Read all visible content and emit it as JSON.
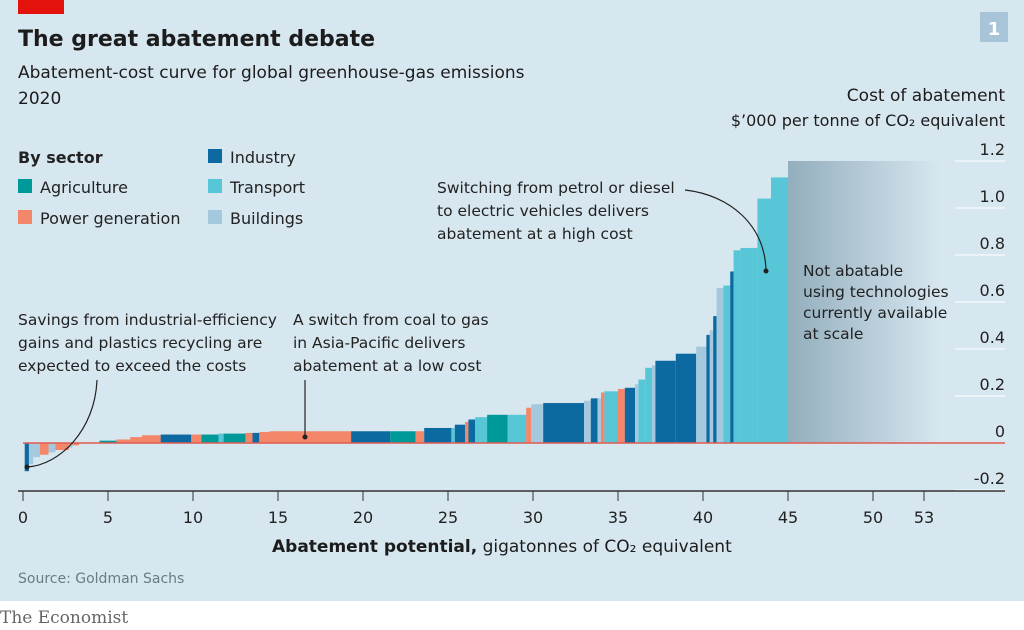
{
  "header": {
    "title": "The great abatement debate",
    "subtitle": "Abatement-cost curve for global greenhouse-gas emissions",
    "year": "2020",
    "chart_number": "1"
  },
  "footer": {
    "source": "Source: Goldman Sachs",
    "brand": "The Economist"
  },
  "colors": {
    "background": "#d7e7f0",
    "brand_red": "#e3120b",
    "Agriculture": "#00999a",
    "Power generation": "#f4866a",
    "Industry": "#0d6aa1",
    "Transport": "#57c6d7",
    "Buildings": "#a4c9de",
    "not_abatable": "#93aebd",
    "zero_line": "#e05a4f"
  },
  "chart_data": {
    "type": "bar",
    "subtype": "variable-width cost curve",
    "xlabel_bold": "Abatement potential,",
    "xlabel_rest": " gigatonnes of CO₂ equivalent",
    "ylabel": "Cost of abatement",
    "yunit": "$’000 per tonne of CO₂ equivalent",
    "xlim": [
      0,
      57
    ],
    "ylim": [
      -0.2,
      1.2
    ],
    "xticks": [
      "0",
      "5",
      "10",
      "15",
      "20",
      "25",
      "30",
      "35",
      "40",
      "45",
      "50",
      "53"
    ],
    "xtick_values": [
      0,
      5,
      10,
      15,
      20,
      25,
      30,
      35,
      40,
      45,
      50,
      53
    ],
    "yticks": [
      "1.2",
      "1.0",
      "0.8",
      "0.6",
      "0.4",
      "0.2",
      "0",
      "-0.2"
    ],
    "ytick_values": [
      1.2,
      1.0,
      0.8,
      0.6,
      0.4,
      0.2,
      0,
      -0.2
    ],
    "legend": {
      "title": "By sector",
      "entries": [
        "Agriculture",
        "Power generation",
        "Industry",
        "Transport",
        "Buildings"
      ]
    },
    "segments": [
      {
        "sector": "Industry",
        "x0": 0.1,
        "x1": 0.35,
        "cost": -0.12
      },
      {
        "sector": "Buildings",
        "x0": 0.35,
        "x1": 0.6,
        "cost": -0.09
      },
      {
        "sector": "Buildings",
        "x0": 0.6,
        "x1": 1.0,
        "cost": -0.06
      },
      {
        "sector": "Power generation",
        "x0": 1.0,
        "x1": 1.5,
        "cost": -0.05
      },
      {
        "sector": "Buildings",
        "x0": 1.5,
        "x1": 1.9,
        "cost": -0.04
      },
      {
        "sector": "Power generation",
        "x0": 1.9,
        "x1": 2.7,
        "cost": -0.03
      },
      {
        "sector": "Buildings",
        "x0": 2.7,
        "x1": 2.9,
        "cost": -0.02
      },
      {
        "sector": "Power generation",
        "x0": 2.9,
        "x1": 3.3,
        "cost": -0.01
      },
      {
        "sector": "Agriculture",
        "x0": 4.5,
        "x1": 5.5,
        "cost": 0.01
      },
      {
        "sector": "Power generation",
        "x0": 5.5,
        "x1": 6.3,
        "cost": 0.015
      },
      {
        "sector": "Power generation",
        "x0": 6.3,
        "x1": 7.0,
        "cost": 0.025
      },
      {
        "sector": "Power generation",
        "x0": 7.0,
        "x1": 8.1,
        "cost": 0.033
      },
      {
        "sector": "Industry",
        "x0": 8.1,
        "x1": 9.9,
        "cost": 0.036
      },
      {
        "sector": "Power generation",
        "x0": 9.9,
        "x1": 10.5,
        "cost": 0.036
      },
      {
        "sector": "Agriculture",
        "x0": 10.5,
        "x1": 11.5,
        "cost": 0.036
      },
      {
        "sector": "Transport",
        "x0": 11.5,
        "x1": 11.8,
        "cost": 0.04
      },
      {
        "sector": "Agriculture",
        "x0": 11.8,
        "x1": 13.1,
        "cost": 0.04
      },
      {
        "sector": "Power generation",
        "x0": 13.1,
        "x1": 13.5,
        "cost": 0.043
      },
      {
        "sector": "Industry",
        "x0": 13.5,
        "x1": 13.9,
        "cost": 0.043
      },
      {
        "sector": "Power generation",
        "x0": 13.9,
        "x1": 14.5,
        "cost": 0.047
      },
      {
        "sector": "Power generation",
        "x0": 14.5,
        "x1": 19.3,
        "cost": 0.05
      },
      {
        "sector": "Industry",
        "x0": 19.3,
        "x1": 21.6,
        "cost": 0.05
      },
      {
        "sector": "Agriculture",
        "x0": 21.6,
        "x1": 23.1,
        "cost": 0.05
      },
      {
        "sector": "Power generation",
        "x0": 23.1,
        "x1": 23.6,
        "cost": 0.05
      },
      {
        "sector": "Industry",
        "x0": 23.6,
        "x1": 25.2,
        "cost": 0.064
      },
      {
        "sector": "Transport",
        "x0": 25.2,
        "x1": 25.4,
        "cost": 0.064
      },
      {
        "sector": "Industry",
        "x0": 25.4,
        "x1": 26.0,
        "cost": 0.078
      },
      {
        "sector": "Power generation",
        "x0": 26.0,
        "x1": 26.2,
        "cost": 0.09
      },
      {
        "sector": "Industry",
        "x0": 26.2,
        "x1": 26.6,
        "cost": 0.1
      },
      {
        "sector": "Transport",
        "x0": 26.6,
        "x1": 27.3,
        "cost": 0.11
      },
      {
        "sector": "Agriculture",
        "x0": 27.3,
        "x1": 28.5,
        "cost": 0.12
      },
      {
        "sector": "Transport",
        "x0": 28.5,
        "x1": 29.6,
        "cost": 0.12
      },
      {
        "sector": "Power generation",
        "x0": 29.6,
        "x1": 29.9,
        "cost": 0.15
      },
      {
        "sector": "Buildings",
        "x0": 29.9,
        "x1": 30.6,
        "cost": 0.165
      },
      {
        "sector": "Industry",
        "x0": 30.6,
        "x1": 33.0,
        "cost": 0.17
      },
      {
        "sector": "Buildings",
        "x0": 33.0,
        "x1": 33.4,
        "cost": 0.18
      },
      {
        "sector": "Industry",
        "x0": 33.4,
        "x1": 33.8,
        "cost": 0.19
      },
      {
        "sector": "Buildings",
        "x0": 33.8,
        "x1": 34.0,
        "cost": 0.19
      },
      {
        "sector": "Power generation",
        "x0": 34.0,
        "x1": 34.2,
        "cost": 0.215
      },
      {
        "sector": "Transport",
        "x0": 34.2,
        "x1": 35.0,
        "cost": 0.22
      },
      {
        "sector": "Power generation",
        "x0": 35.0,
        "x1": 35.4,
        "cost": 0.23
      },
      {
        "sector": "Industry",
        "x0": 35.4,
        "x1": 36.0,
        "cost": 0.235
      },
      {
        "sector": "Buildings",
        "x0": 36.0,
        "x1": 36.2,
        "cost": 0.25
      },
      {
        "sector": "Transport",
        "x0": 36.2,
        "x1": 36.6,
        "cost": 0.27
      },
      {
        "sector": "Transport",
        "x0": 36.6,
        "x1": 37.0,
        "cost": 0.32
      },
      {
        "sector": "Buildings",
        "x0": 37.0,
        "x1": 37.2,
        "cost": 0.33
      },
      {
        "sector": "Industry",
        "x0": 37.2,
        "x1": 38.4,
        "cost": 0.35
      },
      {
        "sector": "Industry",
        "x0": 38.4,
        "x1": 39.6,
        "cost": 0.38
      },
      {
        "sector": "Buildings",
        "x0": 39.6,
        "x1": 40.2,
        "cost": 0.41
      },
      {
        "sector": "Industry",
        "x0": 40.2,
        "x1": 40.4,
        "cost": 0.46
      },
      {
        "sector": "Buildings",
        "x0": 40.4,
        "x1": 40.6,
        "cost": 0.48
      },
      {
        "sector": "Industry",
        "x0": 40.6,
        "x1": 40.8,
        "cost": 0.54
      },
      {
        "sector": "Buildings",
        "x0": 40.8,
        "x1": 41.2,
        "cost": 0.66
      },
      {
        "sector": "Transport",
        "x0": 41.2,
        "x1": 41.6,
        "cost": 0.67
      },
      {
        "sector": "Industry",
        "x0": 41.6,
        "x1": 41.8,
        "cost": 0.73
      },
      {
        "sector": "Transport",
        "x0": 41.8,
        "x1": 42.2,
        "cost": 0.82
      },
      {
        "sector": "Transport",
        "x0": 42.2,
        "x1": 43.2,
        "cost": 0.83
      },
      {
        "sector": "Transport",
        "x0": 43.2,
        "x1": 44.0,
        "cost": 1.04
      },
      {
        "sector": "Transport",
        "x0": 44.0,
        "x1": 45.0,
        "cost": 1.13
      }
    ],
    "not_abatable": {
      "x0": 45,
      "x1": 54,
      "label": [
        "Not abatable",
        "using technologies",
        "currently available",
        "at scale"
      ]
    },
    "annotations": [
      {
        "lines": [
          "Savings from industrial-efficiency",
          "gains and plastics recycling are",
          "expected to exceed the costs"
        ],
        "points_to_x": 0.2,
        "points_to_y": -0.1
      },
      {
        "lines": [
          "A switch from coal to gas",
          "in Asia-Pacific delivers",
          "abatement at a low cost"
        ],
        "points_to_x": 16.6,
        "points_to_y": 0.025
      },
      {
        "lines": [
          "Switching from petrol or diesel",
          "to electric vehicles delivers",
          "abatement at a high cost"
        ],
        "points_to_x": 43.7,
        "points_to_y": 0.73
      }
    ]
  }
}
